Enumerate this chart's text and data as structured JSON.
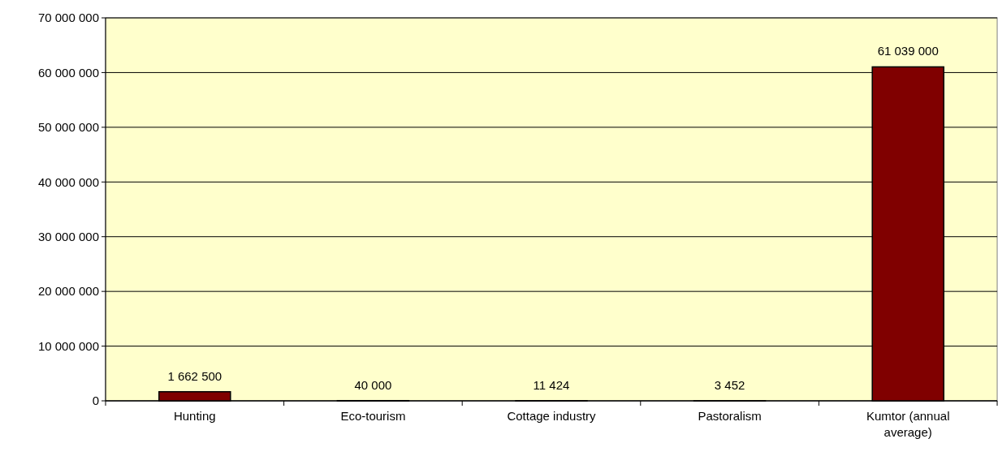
{
  "chart_data": {
    "type": "bar",
    "categories": [
      "Hunting",
      "Eco-tourism",
      "Cottage industry",
      "Pastoralism",
      "Kumtor (annual average)"
    ],
    "values": [
      1662500,
      40000,
      11424,
      3452,
      61039000
    ],
    "value_labels": [
      "1 662 500",
      "40 000",
      "11 424",
      "3 452",
      "61 039 000"
    ],
    "color": "#800000",
    "ylim": [
      0,
      70000000
    ],
    "yticks": [
      {
        "value": 0,
        "label": "0"
      },
      {
        "value": 10000000,
        "label": "10 000 000"
      },
      {
        "value": 20000000,
        "label": "20 000 000"
      },
      {
        "value": 30000000,
        "label": "30 000 000"
      },
      {
        "value": 40000000,
        "label": "40 000 000"
      },
      {
        "value": 50000000,
        "label": "50 000 000"
      },
      {
        "value": 60000000,
        "label": "60 000 000"
      },
      {
        "value": 70000000,
        "label": "70 000 000"
      }
    ],
    "grid": "y"
  }
}
